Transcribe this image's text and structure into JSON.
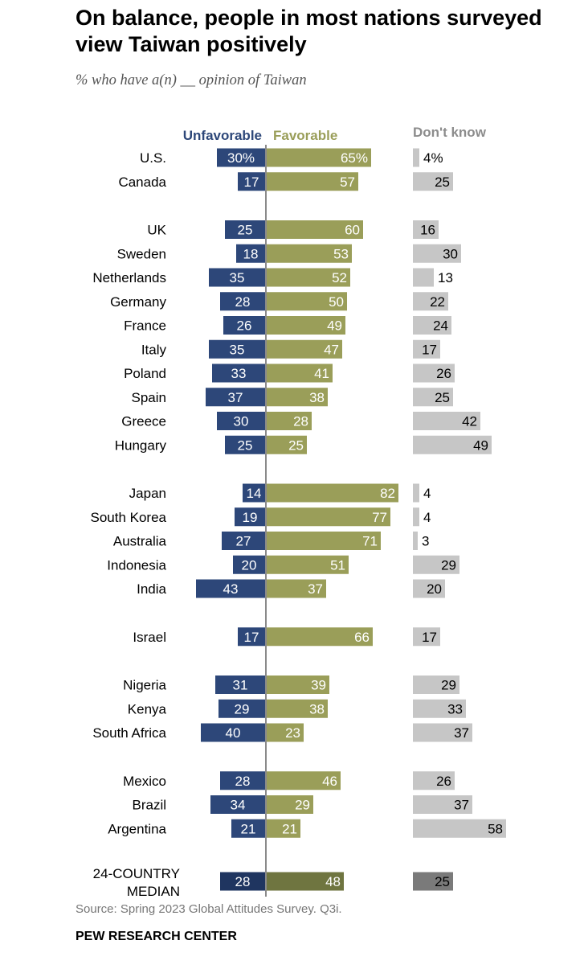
{
  "title": "On balance, people in most nations surveyed view Taiwan positively",
  "subtitle": "% who have a(n) __ opinion of Taiwan",
  "source": "Source: Spring 2023 Global Attitudes Survey. Q3i.",
  "brand": "PEW RESEARCH CENTER",
  "colors": {
    "unfavorable": "#2d4779",
    "favorable": "#9a9e59",
    "dont_know": "#c6c6c6",
    "median_unfavorable": "#1f3560",
    "median_favorable": "#6f7540",
    "median_dont_know": "#7a7a7a",
    "axis": "#8a8a8a"
  },
  "chart_data": {
    "type": "bar",
    "orientation": "horizontal-diverging",
    "title": "On balance, people in most nations surveyed view Taiwan positively",
    "subtitle": "% who have a(n) __ opinion of Taiwan",
    "series": [
      {
        "name": "Unfavorable",
        "values": [
          30,
          17,
          25,
          18,
          35,
          28,
          26,
          35,
          33,
          37,
          30,
          25,
          14,
          19,
          27,
          20,
          43,
          17,
          31,
          29,
          40,
          28,
          34,
          21,
          28
        ]
      },
      {
        "name": "Favorable",
        "values": [
          65,
          57,
          60,
          53,
          52,
          50,
          49,
          47,
          41,
          38,
          28,
          25,
          82,
          77,
          71,
          51,
          37,
          66,
          39,
          38,
          23,
          46,
          29,
          21,
          48
        ]
      },
      {
        "name": "Don't know",
        "values": [
          4,
          25,
          16,
          30,
          13,
          22,
          24,
          17,
          26,
          25,
          42,
          49,
          4,
          4,
          3,
          29,
          20,
          17,
          29,
          33,
          37,
          26,
          37,
          58,
          25
        ]
      }
    ],
    "rows": [
      {
        "label": "U.S.",
        "u": 30,
        "f": 65,
        "d": 4,
        "u_text": "30%",
        "f_text": "65%",
        "d_text": "4%"
      },
      {
        "label": "Canada",
        "u": 17,
        "f": 57,
        "d": 25,
        "u_text": "17",
        "f_text": "57",
        "d_text": "25"
      },
      {
        "label": "UK",
        "u": 25,
        "f": 60,
        "d": 16,
        "u_text": "25",
        "f_text": "60",
        "d_text": "16"
      },
      {
        "label": "Sweden",
        "u": 18,
        "f": 53,
        "d": 30,
        "u_text": "18",
        "f_text": "53",
        "d_text": "30"
      },
      {
        "label": "Netherlands",
        "u": 35,
        "f": 52,
        "d": 13,
        "u_text": "35",
        "f_text": "52",
        "d_text": "13"
      },
      {
        "label": "Germany",
        "u": 28,
        "f": 50,
        "d": 22,
        "u_text": "28",
        "f_text": "50",
        "d_text": "22"
      },
      {
        "label": "France",
        "u": 26,
        "f": 49,
        "d": 24,
        "u_text": "26",
        "f_text": "49",
        "d_text": "24"
      },
      {
        "label": "Italy",
        "u": 35,
        "f": 47,
        "d": 17,
        "u_text": "35",
        "f_text": "47",
        "d_text": "17"
      },
      {
        "label": "Poland",
        "u": 33,
        "f": 41,
        "d": 26,
        "u_text": "33",
        "f_text": "41",
        "d_text": "26"
      },
      {
        "label": "Spain",
        "u": 37,
        "f": 38,
        "d": 25,
        "u_text": "37",
        "f_text": "38",
        "d_text": "25"
      },
      {
        "label": "Greece",
        "u": 30,
        "f": 28,
        "d": 42,
        "u_text": "30",
        "f_text": "28",
        "d_text": "42"
      },
      {
        "label": "Hungary",
        "u": 25,
        "f": 25,
        "d": 49,
        "u_text": "25",
        "f_text": "25",
        "d_text": "49"
      },
      {
        "label": "Japan",
        "u": 14,
        "f": 82,
        "d": 4,
        "u_text": "14",
        "f_text": "82",
        "d_text": "4"
      },
      {
        "label": "South Korea",
        "u": 19,
        "f": 77,
        "d": 4,
        "u_text": "19",
        "f_text": "77",
        "d_text": "4"
      },
      {
        "label": "Australia",
        "u": 27,
        "f": 71,
        "d": 3,
        "u_text": "27",
        "f_text": "71",
        "d_text": "3"
      },
      {
        "label": "Indonesia",
        "u": 20,
        "f": 51,
        "d": 29,
        "u_text": "20",
        "f_text": "51",
        "d_text": "29"
      },
      {
        "label": "India",
        "u": 43,
        "f": 37,
        "d": 20,
        "u_text": "43",
        "f_text": "37",
        "d_text": "20"
      },
      {
        "label": "Israel",
        "u": 17,
        "f": 66,
        "d": 17,
        "u_text": "17",
        "f_text": "66",
        "d_text": "17"
      },
      {
        "label": "Nigeria",
        "u": 31,
        "f": 39,
        "d": 29,
        "u_text": "31",
        "f_text": "39",
        "d_text": "29"
      },
      {
        "label": "Kenya",
        "u": 29,
        "f": 38,
        "d": 33,
        "u_text": "29",
        "f_text": "38",
        "d_text": "33"
      },
      {
        "label": "South Africa",
        "u": 40,
        "f": 23,
        "d": 37,
        "u_text": "40",
        "f_text": "23",
        "d_text": "37"
      },
      {
        "label": "Mexico",
        "u": 28,
        "f": 46,
        "d": 26,
        "u_text": "28",
        "f_text": "46",
        "d_text": "26"
      },
      {
        "label": "Brazil",
        "u": 34,
        "f": 29,
        "d": 37,
        "u_text": "34",
        "f_text": "29",
        "d_text": "37"
      },
      {
        "label": "Argentina",
        "u": 21,
        "f": 21,
        "d": 58,
        "u_text": "21",
        "f_text": "21",
        "d_text": "58"
      },
      {
        "label": "24-COUNTRY MEDIAN",
        "label_lines": [
          "24-COUNTRY",
          "MEDIAN"
        ],
        "u": 28,
        "f": 48,
        "d": 25,
        "u_text": "28",
        "f_text": "48",
        "d_text": "25",
        "median": true
      }
    ],
    "group_breaks_after": [
      "Canada",
      "Hungary",
      "India",
      "Israel",
      "South Africa",
      "Argentina"
    ],
    "legend": [
      "Unfavorable",
      "Favorable",
      "Don't know"
    ],
    "xlim": [
      0,
      100
    ],
    "grid": false
  }
}
